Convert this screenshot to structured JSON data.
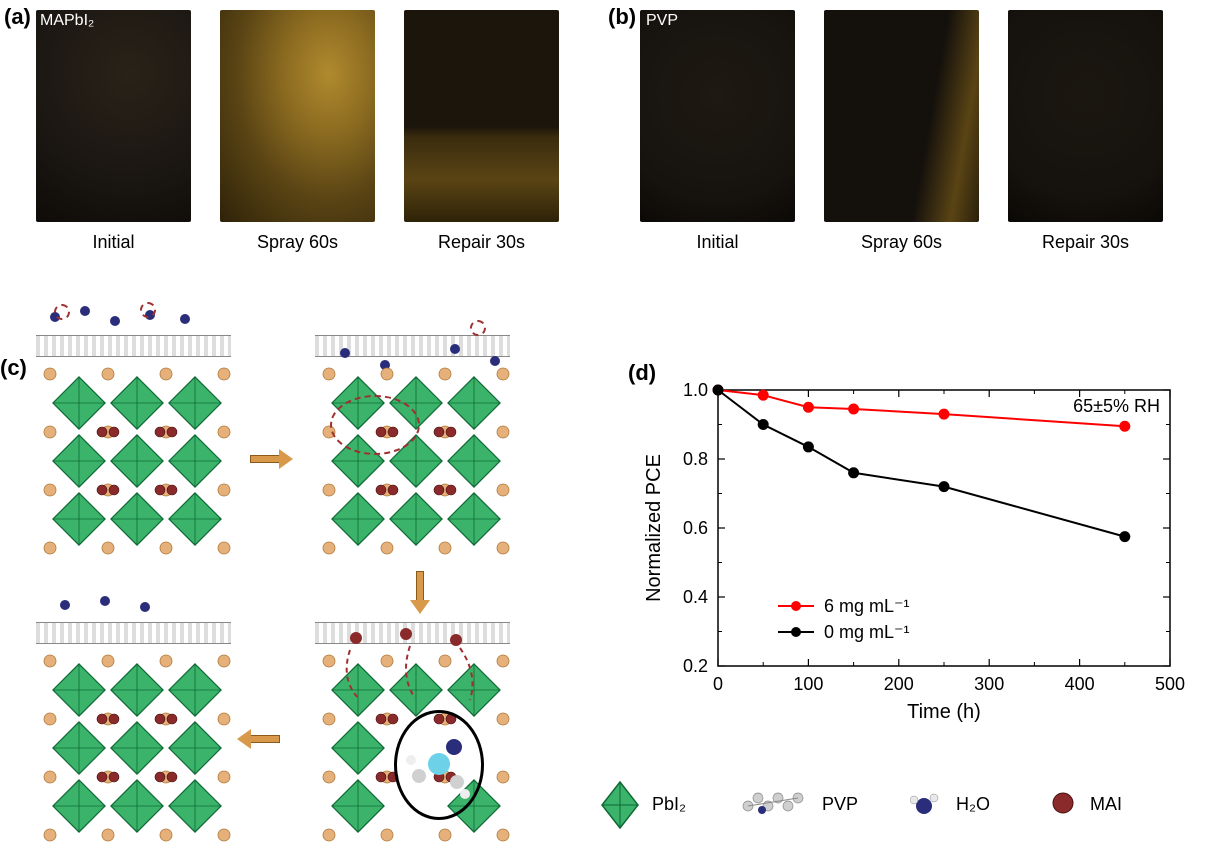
{
  "panels": {
    "a": {
      "label": "(a)",
      "innerLabel": "MAPbI₂",
      "samples": [
        {
          "caption": "Initial",
          "bg": "#1a1612"
        },
        {
          "caption": "Spray 60s",
          "bg": "#6a5218"
        },
        {
          "caption": "Repair 30s",
          "bg": "#2a200f"
        }
      ]
    },
    "b": {
      "label": "(b)",
      "innerLabel": "PVP",
      "samples": [
        {
          "caption": "Initial",
          "bg": "#16120e"
        },
        {
          "caption": "Spray 60s",
          "bg": "#1e1a12"
        },
        {
          "caption": "Repair 30s",
          "bg": "#15110d"
        }
      ]
    },
    "c": {
      "label": "(c)"
    },
    "d": {
      "label": "(d)",
      "chart": {
        "type": "line",
        "xlabel": "Time (h)",
        "ylabel": "Normalized PCE",
        "annotation": "65±5% RH",
        "xlim": [
          0,
          500
        ],
        "ylim": [
          0.2,
          1.0
        ],
        "xtick_step": 100,
        "ytick_step": 0.2,
        "xtick_labels": [
          "0",
          "100",
          "200",
          "300",
          "400",
          "500"
        ],
        "ytick_labels": [
          "0.2",
          "0.4",
          "0.6",
          "0.8",
          "1.0"
        ],
        "label_fontsize": 20,
        "tick_fontsize": 18,
        "legend_fontsize": 18,
        "line_width": 2,
        "marker_size": 8,
        "background_color": "#ffffff",
        "axis_color": "#000000",
        "series": [
          {
            "name": "6 mg mL⁻¹",
            "color": "#ff0000",
            "marker": "circle",
            "x": [
              0,
              50,
              100,
              150,
              250,
              450
            ],
            "y": [
              1.0,
              0.985,
              0.95,
              0.945,
              0.93,
              0.895
            ]
          },
          {
            "name": "0 mg mL⁻¹",
            "color": "#000000",
            "marker": "circle",
            "x": [
              0,
              50,
              100,
              150,
              250,
              450
            ],
            "y": [
              1.0,
              0.9,
              0.835,
              0.76,
              0.72,
              0.575
            ]
          }
        ]
      }
    }
  },
  "legend_keys": {
    "PbI2": {
      "label": "PbI₂",
      "color": "#3bb36a"
    },
    "PVP": {
      "label": "PVP",
      "color": "#bcbcbc"
    },
    "H2O": {
      "label": "H₂O",
      "color": "#2a2d7a"
    },
    "MAI": {
      "label": "MAI",
      "color": "#8a2a2a"
    }
  },
  "colors": {
    "octahedron_fill": "#3bb36a",
    "octahedron_edge": "#0e6a35",
    "corner_atom": "#e6b07a",
    "mai_atom": "#8a2a2a",
    "arrow_fill": "#d89a4a",
    "arrow_edge": "#8a5a1a",
    "water_atom": "#2a2d7a",
    "pvp_chain": "#cfcfcf",
    "dash_circle": "#a03030"
  },
  "font_family": "Arial",
  "caption_fontsize": 18,
  "panel_label_fontsize": 22
}
